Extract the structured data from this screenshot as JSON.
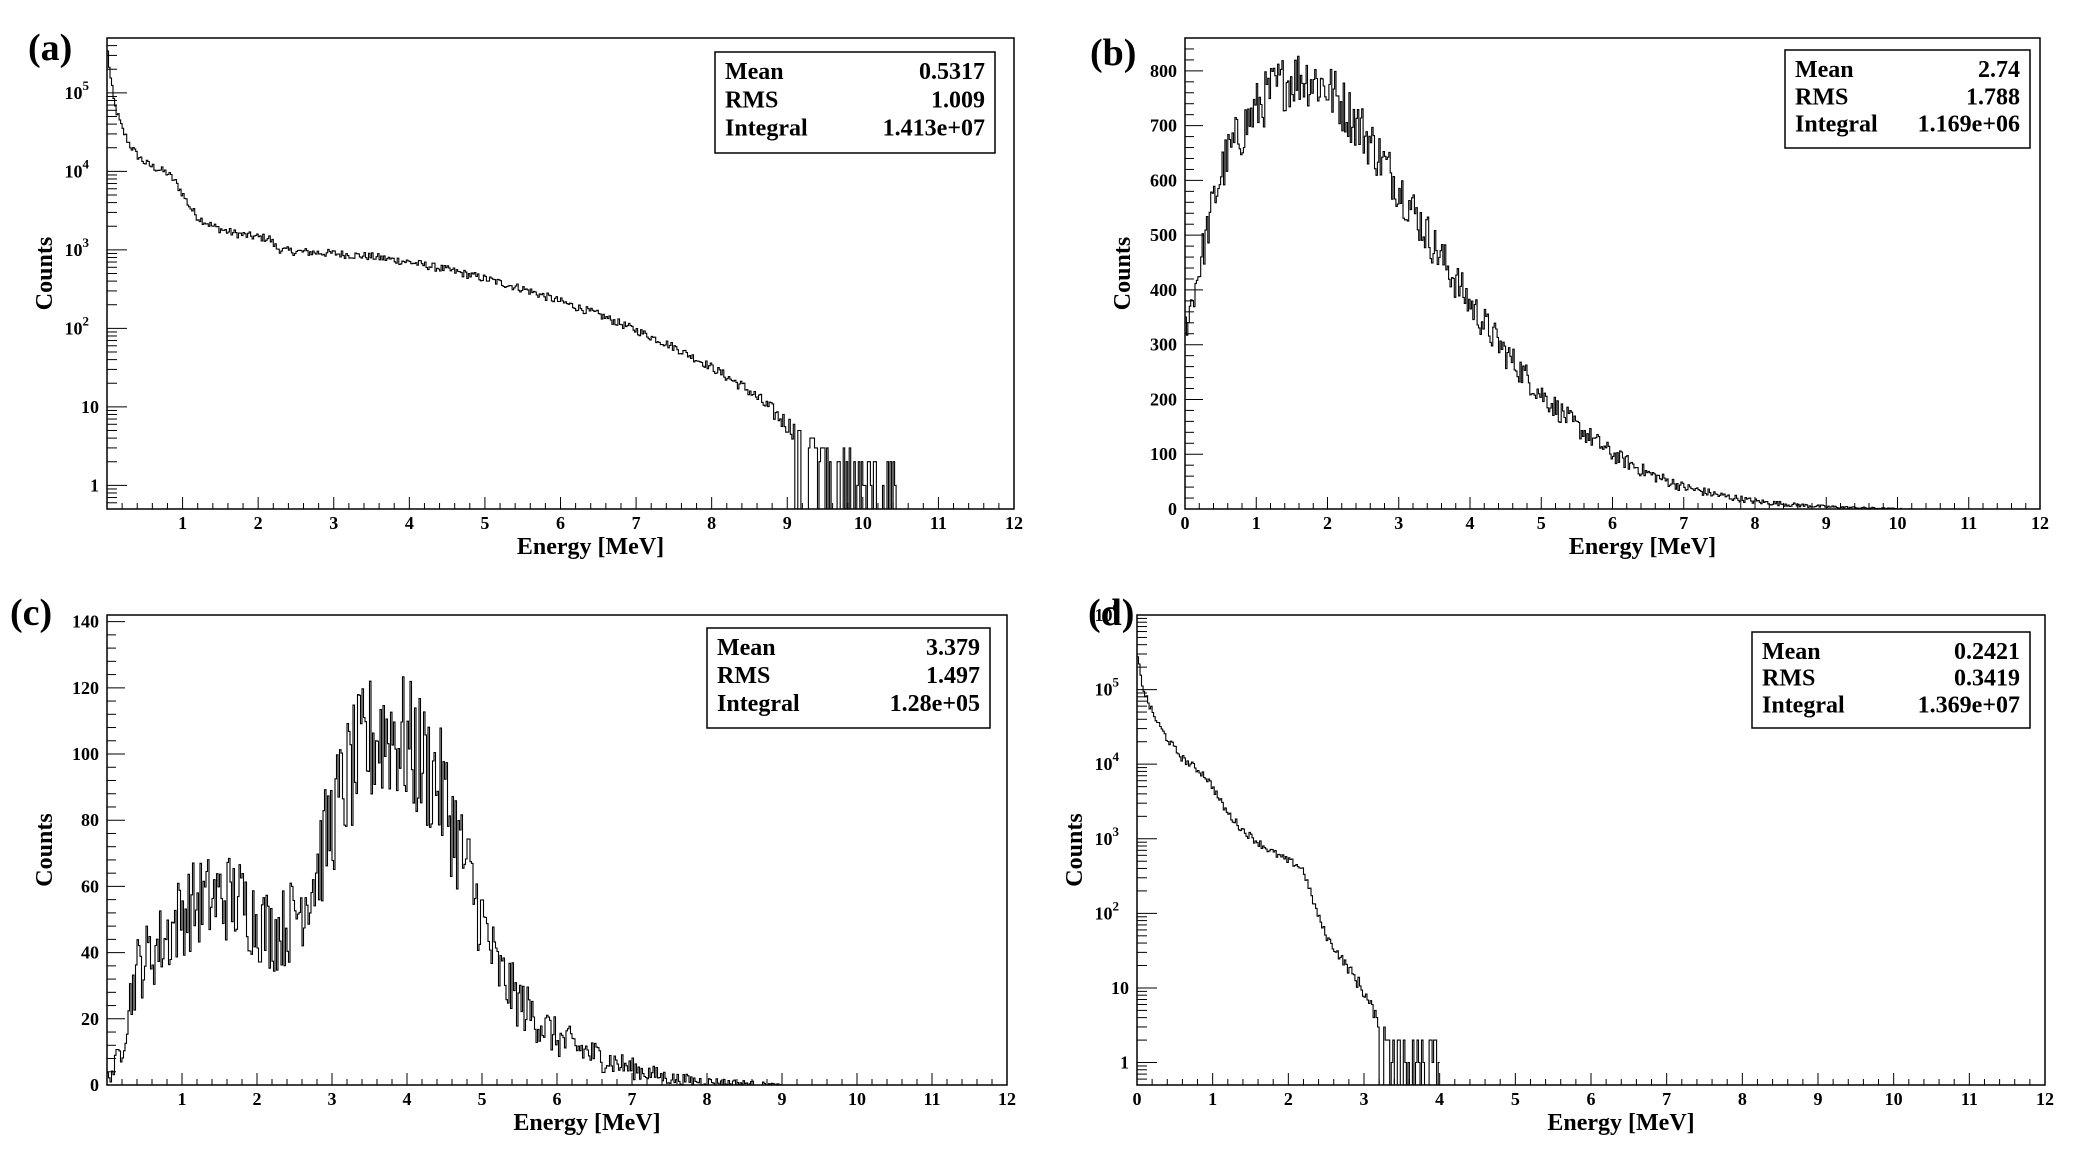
{
  "chart_data": [
    {
      "panel_label": "(a)",
      "type": "line",
      "xlabel": "Energy [MeV]",
      "ylabel": "Counts",
      "xlim": [
        0,
        12
      ],
      "ylim": [
        0.5,
        500000
      ],
      "yscale": "log",
      "grid": false,
      "x_ticks": [
        1,
        2,
        3,
        4,
        5,
        6,
        7,
        8,
        9,
        10,
        11,
        12
      ],
      "y_ticks": [
        {
          "value": 1,
          "label": "1",
          "exp": ""
        },
        {
          "value": 10,
          "label": "10",
          "exp": ""
        },
        {
          "value": 100,
          "label": "10",
          "exp": "2"
        },
        {
          "value": 1000,
          "label": "10",
          "exp": "3"
        },
        {
          "value": 10000,
          "label": "10",
          "exp": "4"
        },
        {
          "value": 100000,
          "label": "10",
          "exp": "5"
        }
      ],
      "stats": [
        {
          "label": "Mean",
          "value": "0.5317"
        },
        {
          "label": "RMS",
          "value": "1.009"
        },
        {
          "label": "Integral",
          "value": "1.413e+07"
        }
      ],
      "noise": 0.12,
      "x": [
        0.0,
        0.05,
        0.1,
        0.2,
        0.3,
        0.4,
        0.5,
        0.6,
        0.7,
        0.8,
        0.9,
        1.0,
        1.1,
        1.2,
        1.4,
        1.6,
        1.8,
        2.0,
        2.15,
        2.25,
        2.35,
        2.5,
        3.0,
        3.5,
        4.0,
        4.5,
        5.0,
        5.5,
        6.0,
        6.5,
        7.0,
        7.5,
        8.0,
        8.5,
        9.0,
        9.3,
        9.6,
        9.8,
        10.0,
        10.2,
        10.4,
        10.5
      ],
      "y": [
        400000,
        150000,
        70000,
        35000,
        22000,
        16000,
        13000,
        11500,
        10500,
        9500,
        7500,
        5200,
        3500,
        2600,
        2000,
        1700,
        1550,
        1450,
        1400,
        1050,
        980,
        950,
        900,
        820,
        700,
        560,
        430,
        320,
        220,
        150,
        95,
        58,
        32,
        16,
        6,
        3.5,
        2,
        1.5,
        1,
        1,
        1,
        1
      ]
    },
    {
      "panel_label": "(b)",
      "type": "line",
      "xlabel": "Energy [MeV]",
      "ylabel": "Counts",
      "xlim": [
        0,
        12
      ],
      "ylim": [
        0,
        860
      ],
      "yscale": "linear",
      "grid": false,
      "x_ticks": [
        0,
        1,
        2,
        3,
        4,
        5,
        6,
        7,
        8,
        9,
        10,
        11,
        12
      ],
      "y_ticks": [
        {
          "value": 0,
          "label": "0",
          "exp": ""
        },
        {
          "value": 100,
          "label": "100",
          "exp": ""
        },
        {
          "value": 200,
          "label": "200",
          "exp": ""
        },
        {
          "value": 300,
          "label": "300",
          "exp": ""
        },
        {
          "value": 400,
          "label": "400",
          "exp": ""
        },
        {
          "value": 500,
          "label": "500",
          "exp": ""
        },
        {
          "value": 600,
          "label": "600",
          "exp": ""
        },
        {
          "value": 700,
          "label": "700",
          "exp": ""
        },
        {
          "value": 800,
          "label": "800",
          "exp": ""
        }
      ],
      "stats": [
        {
          "label": "Mean",
          "value": "2.74"
        },
        {
          "label": "RMS",
          "value": "1.788"
        },
        {
          "label": "Integral",
          "value": "1.169e+06"
        }
      ],
      "noise": 0.035,
      "x": [
        0.0,
        0.1,
        0.2,
        0.3,
        0.4,
        0.5,
        0.6,
        0.8,
        1.0,
        1.2,
        1.4,
        1.6,
        1.8,
        2.0,
        2.2,
        2.5,
        3.0,
        3.5,
        4.0,
        4.5,
        5.0,
        5.5,
        6.0,
        6.5,
        7.0,
        7.5,
        8.0,
        8.5,
        9.0,
        9.5,
        10.0,
        10.2
      ],
      "y": [
        330,
        380,
        440,
        500,
        560,
        610,
        645,
        690,
        730,
        760,
        780,
        790,
        785,
        770,
        740,
        690,
        590,
        480,
        375,
        285,
        210,
        150,
        100,
        65,
        40,
        25,
        14,
        8,
        4,
        2,
        0.5,
        0
      ]
    },
    {
      "panel_label": "(c)",
      "type": "line",
      "xlabel": "Energy [MeV]",
      "ylabel": "Counts",
      "xlim": [
        0,
        12
      ],
      "ylim": [
        0,
        142
      ],
      "yscale": "linear",
      "grid": false,
      "x_ticks": [
        1,
        2,
        3,
        4,
        5,
        6,
        7,
        8,
        9,
        10,
        11,
        12
      ],
      "y_ticks": [
        {
          "value": 0,
          "label": "0",
          "exp": ""
        },
        {
          "value": 20,
          "label": "20",
          "exp": ""
        },
        {
          "value": 40,
          "label": "40",
          "exp": ""
        },
        {
          "value": 60,
          "label": "60",
          "exp": ""
        },
        {
          "value": 80,
          "label": "80",
          "exp": ""
        },
        {
          "value": 100,
          "label": "100",
          "exp": ""
        },
        {
          "value": 120,
          "label": "120",
          "exp": ""
        },
        {
          "value": 140,
          "label": "140",
          "exp": ""
        }
      ],
      "stats": [
        {
          "label": "Mean",
          "value": "3.379"
        },
        {
          "label": "RMS",
          "value": "1.497"
        },
        {
          "label": "Integral",
          "value": "1.28e+05"
        }
      ],
      "noise": 0.12,
      "x": [
        0.0,
        0.1,
        0.2,
        0.3,
        0.4,
        0.6,
        0.8,
        1.0,
        1.2,
        1.4,
        1.6,
        1.8,
        2.0,
        2.2,
        2.4,
        2.6,
        2.8,
        3.0,
        3.2,
        3.4,
        3.6,
        3.8,
        4.0,
        4.2,
        4.4,
        4.6,
        4.8,
        5.0,
        5.2,
        5.5,
        6.0,
        6.5,
        7.0,
        7.5,
        8.0,
        8.5,
        9.0
      ],
      "y": [
        2,
        5,
        12,
        25,
        35,
        40,
        45,
        52,
        55,
        56,
        57,
        55,
        50,
        46,
        48,
        55,
        65,
        80,
        92,
        100,
        106,
        107,
        103,
        98,
        92,
        80,
        65,
        50,
        35,
        25,
        14,
        9,
        5,
        2,
        1,
        0.5,
        0
      ]
    },
    {
      "panel_label": "(d)",
      "type": "line",
      "xlabel": "Energy [MeV]",
      "ylabel": "Counts",
      "xlim": [
        0,
        12
      ],
      "ylim": [
        0.5,
        1000000
      ],
      "yscale": "log",
      "grid": false,
      "x_ticks": [
        0,
        1,
        2,
        3,
        4,
        5,
        6,
        7,
        8,
        9,
        10,
        11,
        12
      ],
      "y_ticks": [
        {
          "value": 1,
          "label": "1",
          "exp": ""
        },
        {
          "value": 10,
          "label": "10",
          "exp": ""
        },
        {
          "value": 100,
          "label": "10",
          "exp": "2"
        },
        {
          "value": 1000,
          "label": "10",
          "exp": "3"
        },
        {
          "value": 10000,
          "label": "10",
          "exp": "4"
        },
        {
          "value": 100000,
          "label": "10",
          "exp": "5"
        },
        {
          "value": 1000000,
          "label": "10",
          "exp": "6"
        }
      ],
      "stats": [
        {
          "label": "Mean",
          "value": "0.2421"
        },
        {
          "label": "RMS",
          "value": "0.3419"
        },
        {
          "label": "Integral",
          "value": "1.369e+07"
        }
      ],
      "noise": 0.12,
      "x": [
        0.0,
        0.05,
        0.1,
        0.2,
        0.3,
        0.4,
        0.5,
        0.6,
        0.7,
        0.8,
        0.9,
        1.0,
        1.1,
        1.2,
        1.4,
        1.6,
        1.8,
        2.0,
        2.1,
        2.2,
        2.3,
        2.4,
        2.5,
        2.6,
        2.8,
        3.0,
        3.1,
        3.2,
        3.3,
        3.4,
        3.5,
        3.7,
        4.0
      ],
      "y": [
        300000,
        150000,
        90000,
        50000,
        32000,
        22000,
        16000,
        12000,
        10000,
        8500,
        7000,
        5000,
        3200,
        2200,
        1300,
        900,
        650,
        500,
        460,
        380,
        180,
        90,
        50,
        35,
        18,
        9,
        5,
        3,
        2,
        1.5,
        1,
        1,
        1
      ]
    }
  ]
}
